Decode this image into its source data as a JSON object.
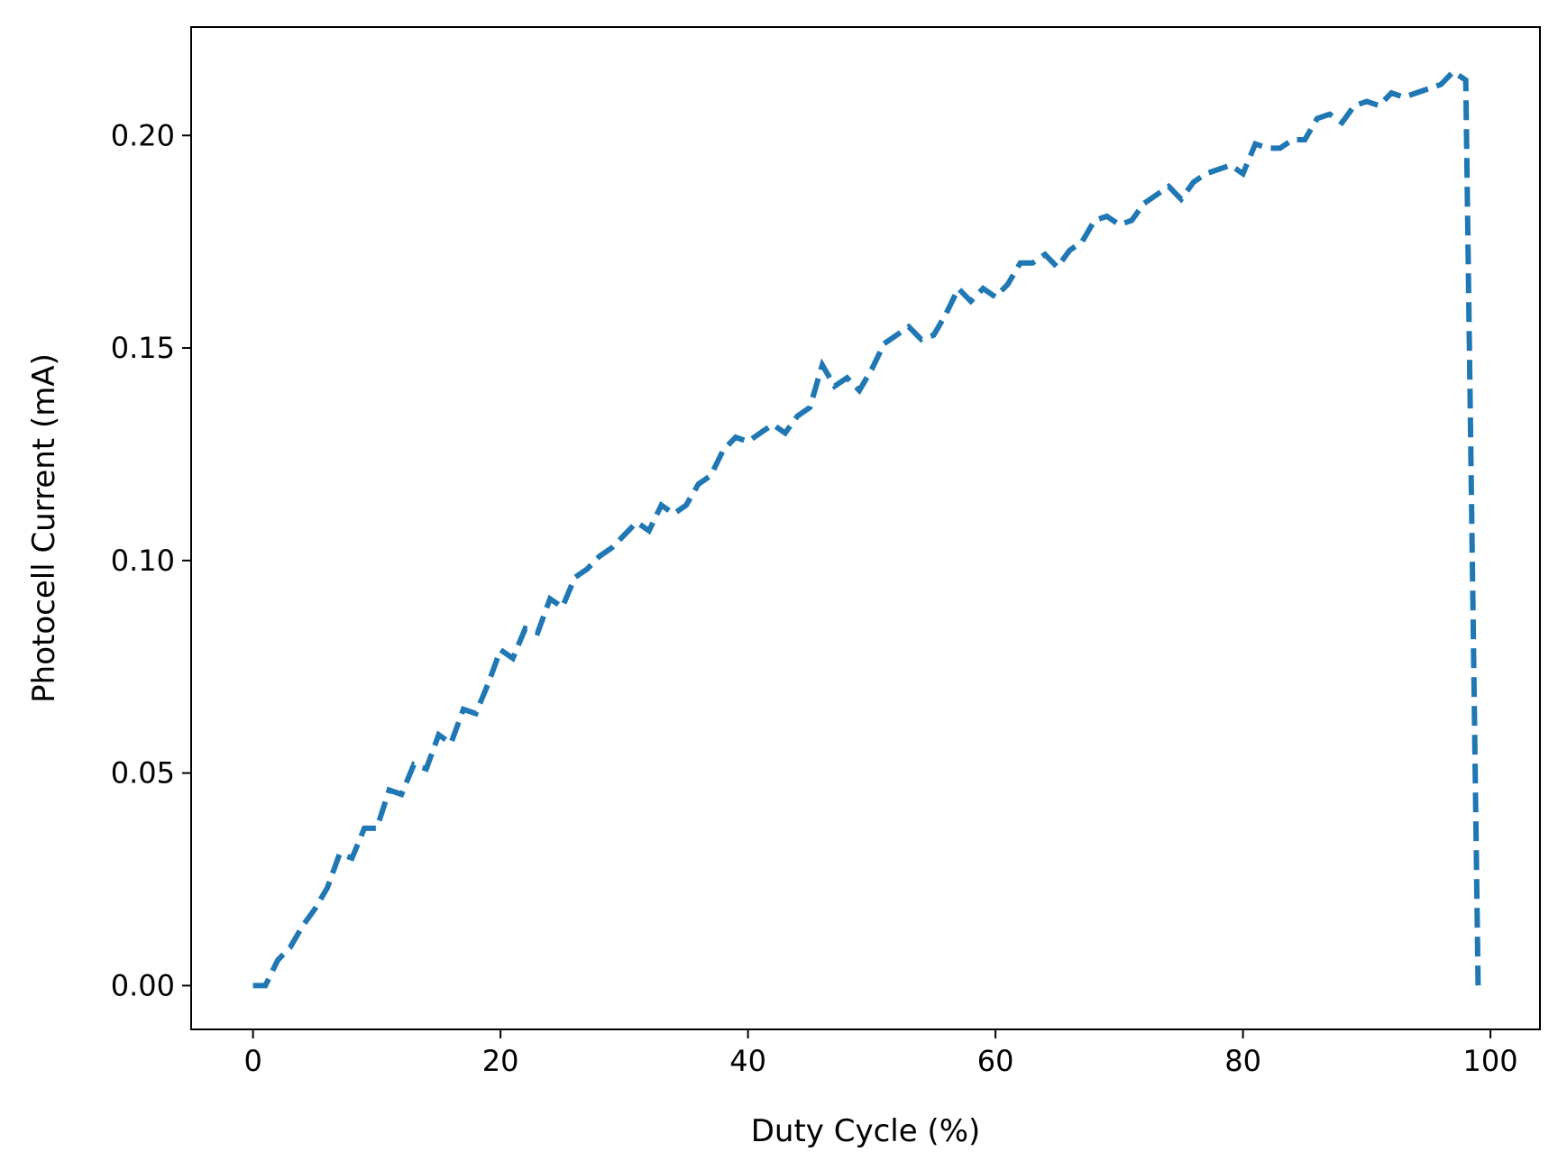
{
  "chart_data": {
    "type": "line",
    "title": "",
    "xlabel": "Duty Cycle (%)",
    "ylabel": "Photocell Current (mA)",
    "xlim": [
      -5,
      104
    ],
    "ylim": [
      -0.0103,
      0.2255
    ],
    "xticks": [
      0,
      20,
      40,
      60,
      80,
      100
    ],
    "xtick_labels": [
      "0",
      "20",
      "40",
      "60",
      "80",
      "100"
    ],
    "yticks": [
      0.0,
      0.05,
      0.1,
      0.15,
      0.2
    ],
    "ytick_labels": [
      "0.00",
      "0.05",
      "0.10",
      "0.15",
      "0.20"
    ],
    "grid": false,
    "legend": "none",
    "series": [
      {
        "color": "#1f77b4",
        "line_style": "dashed",
        "x": [
          0,
          1,
          2,
          3,
          4,
          5,
          6,
          7,
          8,
          9,
          10,
          11,
          12,
          13,
          14,
          15,
          16,
          17,
          18,
          19,
          20,
          21,
          22,
          23,
          24,
          25,
          26,
          27,
          28,
          29,
          30,
          31,
          32,
          33,
          34,
          35,
          36,
          37,
          38,
          39,
          40,
          41,
          42,
          43,
          44,
          45,
          46,
          47,
          48,
          49,
          50,
          51,
          52,
          53,
          54,
          55,
          56,
          57,
          58,
          59,
          60,
          61,
          62,
          63,
          64,
          65,
          66,
          67,
          68,
          69,
          70,
          71,
          72,
          73,
          74,
          75,
          76,
          77,
          78,
          79,
          80,
          81,
          82,
          83,
          84,
          85,
          86,
          87,
          88,
          89,
          90,
          91,
          92,
          93,
          94,
          95,
          96,
          97,
          98,
          99
        ],
        "y": [
          0.0,
          0.0,
          0.006,
          0.009,
          0.014,
          0.018,
          0.023,
          0.031,
          0.03,
          0.037,
          0.037,
          0.046,
          0.045,
          0.052,
          0.051,
          0.059,
          0.057,
          0.065,
          0.064,
          0.071,
          0.079,
          0.077,
          0.084,
          0.083,
          0.091,
          0.089,
          0.096,
          0.098,
          0.101,
          0.103,
          0.106,
          0.109,
          0.107,
          0.113,
          0.111,
          0.113,
          0.118,
          0.12,
          0.126,
          0.129,
          0.128,
          0.13,
          0.132,
          0.13,
          0.134,
          0.136,
          0.146,
          0.141,
          0.143,
          0.14,
          0.145,
          0.151,
          0.153,
          0.155,
          0.152,
          0.153,
          0.158,
          0.164,
          0.161,
          0.164,
          0.162,
          0.165,
          0.17,
          0.17,
          0.172,
          0.169,
          0.173,
          0.175,
          0.18,
          0.181,
          0.179,
          0.18,
          0.184,
          0.186,
          0.188,
          0.185,
          0.189,
          0.191,
          0.192,
          0.193,
          0.191,
          0.198,
          0.197,
          0.197,
          0.199,
          0.199,
          0.204,
          0.205,
          0.203,
          0.207,
          0.208,
          0.207,
          0.21,
          0.209,
          0.21,
          0.211,
          0.212,
          0.215,
          0.213,
          0.0
        ]
      }
    ]
  }
}
